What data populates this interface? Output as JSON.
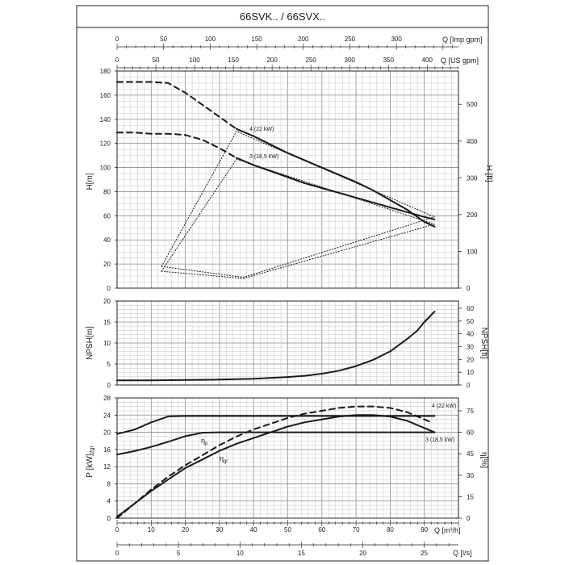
{
  "header": {
    "title": "66SVK.. / 66SVX.."
  },
  "top_axes": {
    "imp": {
      "label": "Q [Imp gpm]",
      "ticks": [
        "0",
        "50",
        "100",
        "150",
        "200",
        "250",
        "300"
      ]
    },
    "us": {
      "label": "Q [US gpm]",
      "ticks": [
        "0",
        "50",
        "100",
        "150",
        "200",
        "250",
        "300",
        "350",
        "400"
      ]
    }
  },
  "bottom_axes": {
    "m3h": {
      "label": "Q [m³/h]",
      "ticks": [
        "0",
        "10",
        "20",
        "30",
        "40",
        "50",
        "60",
        "70",
        "80",
        "90"
      ]
    },
    "ls": {
      "label": "Q [l/s]",
      "ticks": [
        "0",
        "5",
        "10",
        "15",
        "20",
        "25"
      ]
    }
  },
  "head_panel": {
    "ylabel": "H[m]",
    "ylabel_right": "H [ft]",
    "yticks": [
      "0",
      "20",
      "40",
      "60",
      "80",
      "100",
      "120",
      "140",
      "160",
      "180"
    ],
    "yticks_right": [
      "0",
      "100",
      "200",
      "300",
      "400",
      "500"
    ],
    "label_4": "4 (22 kW)",
    "label_3": "3 (18,5 kW)"
  },
  "npsh_panel": {
    "ylabel": "NPSH[m]",
    "ylabel_right": "NPSH[ft]",
    "yticks": [
      "0",
      "5",
      "10",
      "15",
      "20"
    ],
    "yticks_right": [
      "0",
      "10",
      "20",
      "30",
      "40",
      "50",
      "60"
    ]
  },
  "power_panel": {
    "ylabel": "P [kW]",
    "ylabel_sub": "2gr",
    "ylabel_right": "η[%]",
    "yticks": [
      "0",
      "4",
      "8",
      "12",
      "16",
      "20",
      "24",
      "28"
    ],
    "yticks_right": [
      "0",
      "15",
      "30",
      "45",
      "60",
      "75"
    ],
    "label_4": "4 (22 kW)",
    "label_3": "3 (18,5 kW)",
    "eta_p": "η",
    "eta_p_sub": "p",
    "eta_gr": "η",
    "eta_gr_sub": "gr"
  },
  "chart_data": [
    {
      "type": "line",
      "xlabel": "Q [m³/h]",
      "ylabel": "H[m]",
      "xlim": [
        0,
        100
      ],
      "ylim": [
        0,
        180
      ],
      "series": [
        {
          "name": "4 (22 kW)",
          "style": "solid",
          "x": [
            35,
            40,
            45,
            50,
            55,
            60,
            65,
            70,
            75,
            80,
            85,
            90,
            93
          ],
          "y": [
            132,
            126,
            119,
            112,
            106,
            100,
            94,
            88,
            81,
            73,
            65,
            55,
            51
          ]
        },
        {
          "name": "4 (22 kW)",
          "style": "dashed",
          "x": [
            0,
            5,
            10,
            15,
            20,
            25,
            30,
            35
          ],
          "y": [
            171,
            171,
            171,
            170,
            162,
            152,
            142,
            132
          ]
        },
        {
          "name": "3 (18,5 kW)",
          "style": "solid",
          "x": [
            35,
            40,
            45,
            50,
            55,
            60,
            65,
            70,
            75,
            80,
            85,
            90,
            93
          ],
          "y": [
            108,
            102,
            97,
            92,
            87,
            83,
            79,
            75,
            71,
            67,
            63,
            59,
            57
          ]
        },
        {
          "name": "3 (18,5 kW)",
          "style": "dashed",
          "x": [
            0,
            5,
            10,
            15,
            20,
            25,
            30,
            35
          ],
          "y": [
            129,
            129,
            128,
            128,
            127,
            123,
            116,
            108
          ]
        },
        {
          "name": "",
          "style": "dotted",
          "x": [
            13,
            35,
            93,
            13,
            35,
            93
          ],
          "y": [
            18,
            130,
            59,
            null,
            null,
            null
          ]
        },
        {
          "name": "",
          "style": "dotted",
          "x": [
            13,
            35,
            93
          ],
          "y": [
            14,
            107,
            53
          ]
        },
        {
          "name": "",
          "style": "dotted",
          "x": [
            13,
            37,
            93
          ],
          "y": [
            18,
            9,
            59
          ]
        },
        {
          "name": "",
          "style": "dotted",
          "x": [
            13,
            37,
            93
          ],
          "y": [
            14,
            8,
            53
          ]
        }
      ]
    },
    {
      "type": "line",
      "xlabel": "Q [m³/h]",
      "ylabel": "NPSH[m]",
      "xlim": [
        0,
        100
      ],
      "ylim": [
        0,
        20
      ],
      "series": [
        {
          "name": "",
          "style": "solid",
          "x": [
            0,
            10,
            20,
            30,
            40,
            50,
            55,
            60,
            65,
            70,
            75,
            80,
            85,
            88,
            90,
            93
          ],
          "y": [
            1.1,
            1.1,
            1.2,
            1.3,
            1.5,
            1.9,
            2.2,
            2.7,
            3.4,
            4.5,
            6.0,
            8.0,
            11.0,
            13.0,
            15.0,
            17.5
          ]
        }
      ]
    },
    {
      "type": "line",
      "xlabel": "Q [m³/h]",
      "ylabel": "P [kW]",
      "ylabel_right": "η[%]",
      "xlim": [
        0,
        100
      ],
      "ylim": [
        0,
        28
      ],
      "ylim_right": [
        0,
        84
      ],
      "series": [
        {
          "name": "4 (22 kW)",
          "style": "solid",
          "axis": "left",
          "x": [
            0,
            5,
            10,
            15,
            20,
            30,
            40,
            50,
            60,
            70,
            80,
            90,
            93
          ],
          "y": [
            19.6,
            20.6,
            22.3,
            23.7,
            23.8,
            23.8,
            23.8,
            23.8,
            23.8,
            23.8,
            23.8,
            23.8,
            23.8
          ]
        },
        {
          "name": "3 (18,5 kW)",
          "style": "solid",
          "axis": "left",
          "x": [
            0,
            5,
            10,
            15,
            20,
            25,
            30,
            40,
            50,
            60,
            70,
            80,
            90,
            93
          ],
          "y": [
            14.8,
            15.6,
            16.6,
            17.8,
            19.1,
            19.9,
            20.0,
            20.0,
            20.0,
            20.0,
            20.0,
            20.0,
            20.0,
            20.0
          ]
        },
        {
          "name": "ηp",
          "style": "solid",
          "axis": "right",
          "x": [
            0,
            5,
            10,
            15,
            20,
            25,
            30,
            35,
            40,
            45,
            50,
            55,
            60,
            65,
            70,
            75,
            80,
            85,
            90,
            93
          ],
          "y": [
            1,
            10,
            19,
            27,
            35,
            41,
            47,
            52,
            56,
            60,
            64,
            67,
            69,
            71,
            72,
            72,
            71,
            68,
            63,
            60
          ]
        },
        {
          "name": "ηgr",
          "style": "dashed",
          "axis": "right",
          "x": [
            0,
            5,
            10,
            15,
            20,
            25,
            30,
            35,
            40,
            45,
            50,
            55,
            60,
            65,
            70,
            75,
            80,
            85,
            90,
            92
          ],
          "y": [
            0,
            10,
            20,
            29,
            37,
            44,
            51,
            57,
            62,
            66,
            70,
            73,
            75,
            77,
            78,
            78,
            77,
            74,
            69,
            67
          ]
        }
      ]
    }
  ]
}
